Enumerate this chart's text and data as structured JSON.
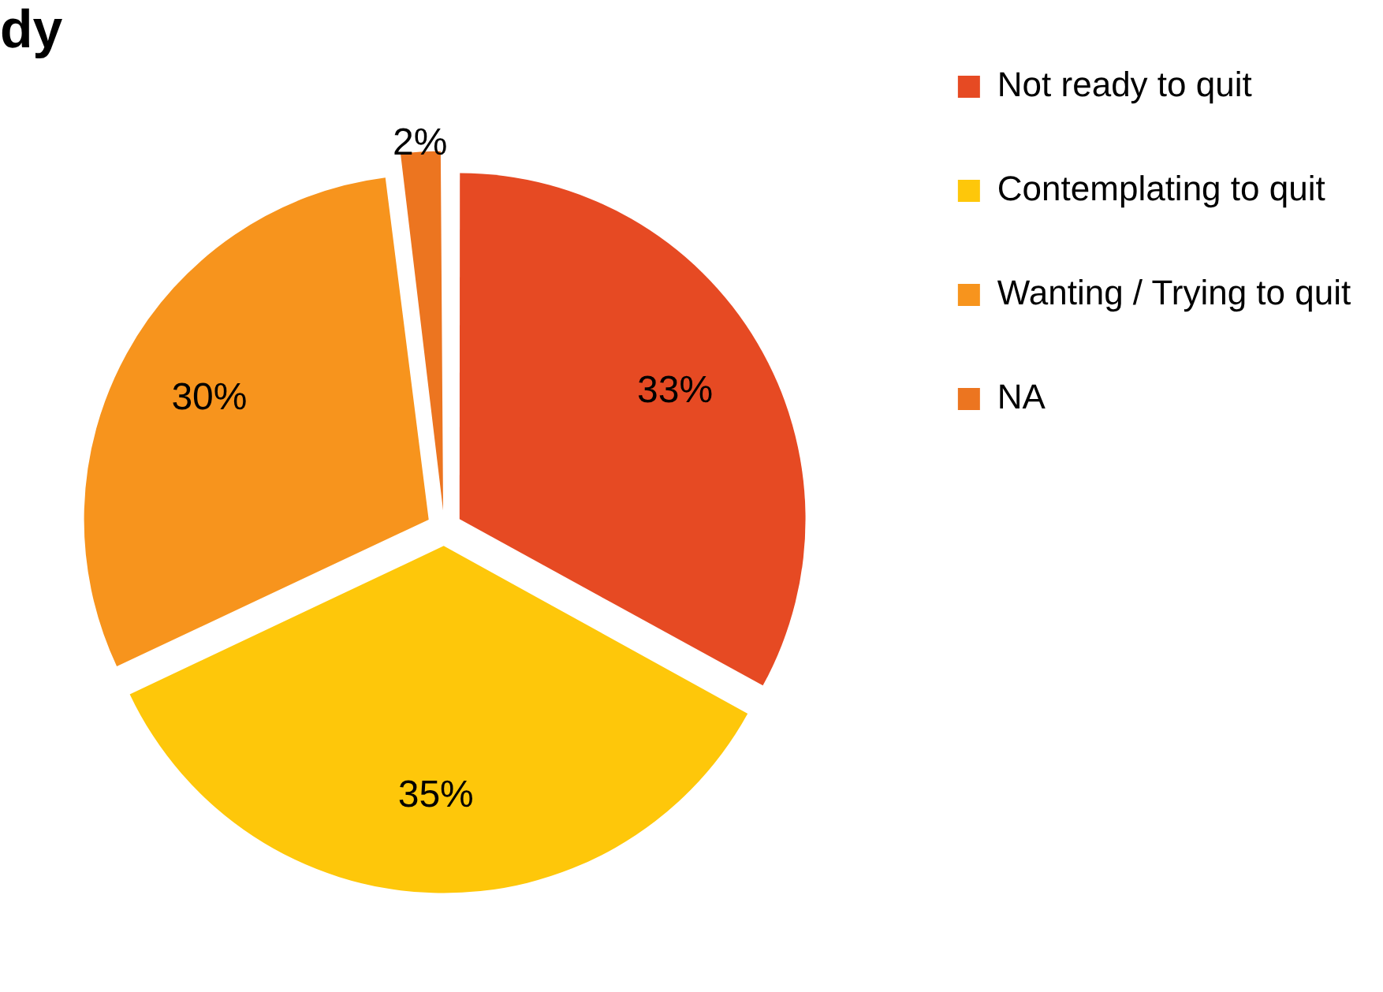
{
  "chart_data": {
    "type": "pie",
    "title": "dy",
    "categories": [
      "Not ready to quit",
      "Contemplating to quit",
      "Wanting / Trying to quit",
      "NA"
    ],
    "values": [
      33,
      35,
      30,
      2
    ],
    "colors": [
      "#e64a23",
      "#fec70a",
      "#f7941d",
      "#ec7520"
    ],
    "value_labels": [
      "33%",
      "35%",
      "30%",
      "2%"
    ],
    "legend": "top right"
  }
}
